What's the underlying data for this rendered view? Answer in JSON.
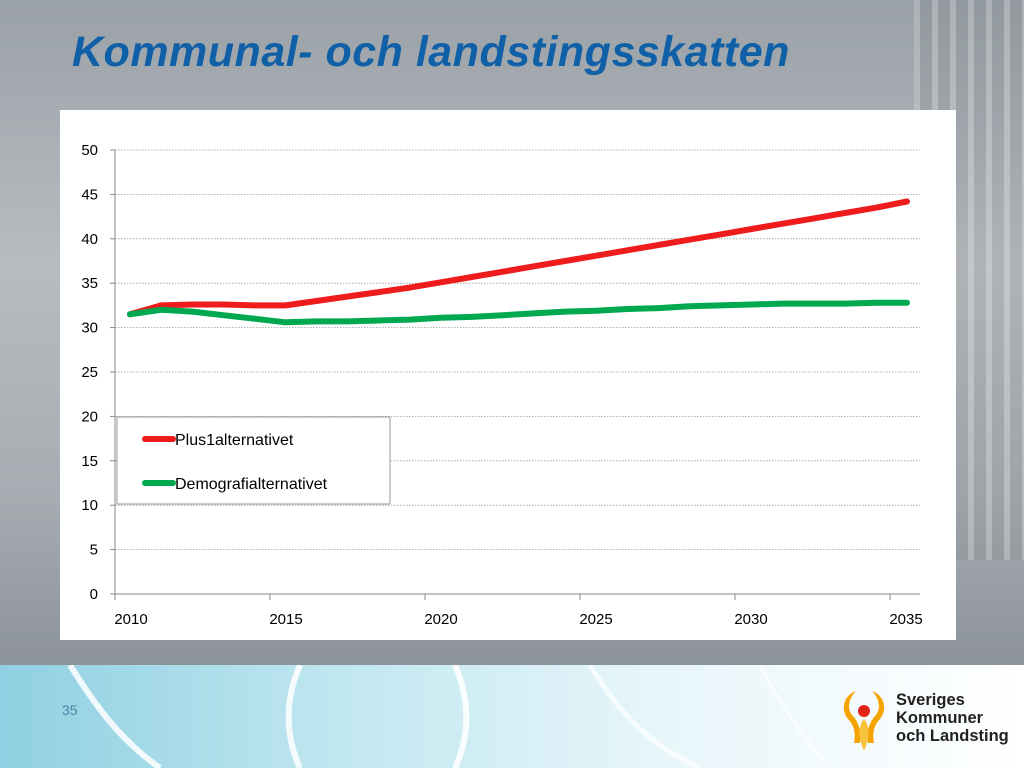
{
  "slide": {
    "title": "Kommunal- och landstingsskatten",
    "page_number": "35"
  },
  "logo": {
    "lines": [
      "Sveriges",
      "Kommuner",
      "och Landsting"
    ],
    "colors": {
      "primary": "#f5a300",
      "secondary": "#e2231a"
    }
  },
  "chart_data": {
    "type": "line",
    "title": "",
    "xlabel": "",
    "ylabel": "",
    "xlim": [
      2010,
      2035
    ],
    "ylim": [
      0,
      50
    ],
    "x_ticks": [
      2010,
      2015,
      2020,
      2025,
      2030,
      2035
    ],
    "y_ticks": [
      0,
      5,
      10,
      15,
      20,
      25,
      30,
      35,
      40,
      45,
      50
    ],
    "grid": true,
    "legend_position": "left",
    "series": [
      {
        "name": "Plus1alternativet",
        "color": "#ee1c1c",
        "x": [
          2010,
          2011,
          2012,
          2013,
          2014,
          2015,
          2016,
          2017,
          2018,
          2019,
          2020,
          2021,
          2022,
          2023,
          2024,
          2025,
          2026,
          2027,
          2028,
          2029,
          2030,
          2031,
          2032,
          2033,
          2034,
          2035
        ],
        "values": [
          31.5,
          32.5,
          32.6,
          32.6,
          32.5,
          32.5,
          33.0,
          33.5,
          34.0,
          34.5,
          35.1,
          35.7,
          36.3,
          36.9,
          37.5,
          38.1,
          38.7,
          39.3,
          39.9,
          40.5,
          41.1,
          41.7,
          42.3,
          42.9,
          43.5,
          44.2
        ]
      },
      {
        "name": "Demografialternativet",
        "color": "#00a84f",
        "x": [
          2010,
          2011,
          2012,
          2013,
          2014,
          2015,
          2016,
          2017,
          2018,
          2019,
          2020,
          2021,
          2022,
          2023,
          2024,
          2025,
          2026,
          2027,
          2028,
          2029,
          2030,
          2031,
          2032,
          2033,
          2034,
          2035
        ],
        "values": [
          31.5,
          32.0,
          31.8,
          31.4,
          31.0,
          30.6,
          30.7,
          30.7,
          30.8,
          30.9,
          31.1,
          31.2,
          31.4,
          31.6,
          31.8,
          31.9,
          32.1,
          32.2,
          32.4,
          32.5,
          32.6,
          32.7,
          32.7,
          32.7,
          32.8,
          32.8
        ]
      }
    ]
  }
}
